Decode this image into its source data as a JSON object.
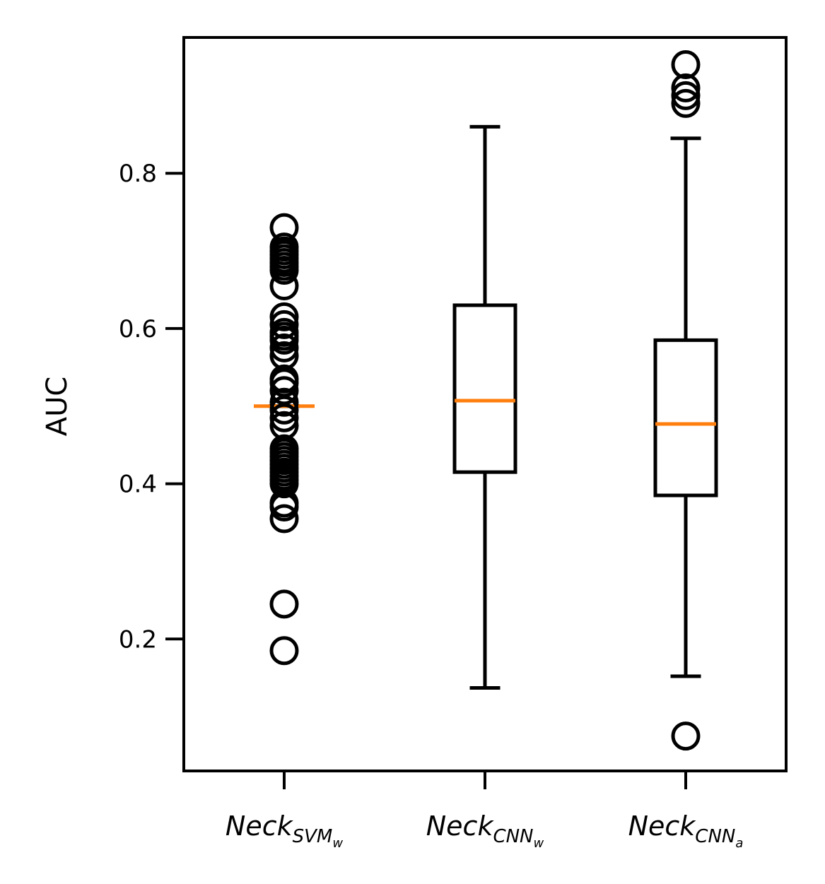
{
  "chart_data": {
    "type": "box",
    "ylabel": "AUC",
    "ylim": [
      0.03,
      0.975
    ],
    "yticks": [
      0.2,
      0.4,
      0.6,
      0.8
    ],
    "ytick_labels": [
      "0.2",
      "0.4",
      "0.6",
      "0.8"
    ],
    "categories": [
      {
        "label": "Neck",
        "sub": "SVM",
        "subsub": "w"
      },
      {
        "label": "Neck",
        "sub": "CNN",
        "subsub": "w"
      },
      {
        "label": "Neck",
        "sub": "CNN",
        "subsub": "a"
      }
    ],
    "series": [
      {
        "q1": 0.5,
        "median": 0.5,
        "q3": 0.5,
        "whisker_low": 0.5,
        "whisker_high": 0.5,
        "outliers": [
          0.73,
          0.705,
          0.7,
          0.695,
          0.69,
          0.685,
          0.68,
          0.675,
          0.655,
          0.615,
          0.605,
          0.595,
          0.59,
          0.585,
          0.575,
          0.565,
          0.535,
          0.53,
          0.52,
          0.505,
          0.495,
          0.485,
          0.475,
          0.445,
          0.44,
          0.435,
          0.43,
          0.425,
          0.42,
          0.415,
          0.41,
          0.405,
          0.4,
          0.375,
          0.37,
          0.355,
          0.245,
          0.185
        ]
      },
      {
        "q1": 0.415,
        "median": 0.507,
        "q3": 0.63,
        "whisker_low": 0.137,
        "whisker_high": 0.86,
        "outliers": []
      },
      {
        "q1": 0.385,
        "median": 0.477,
        "q3": 0.585,
        "whisker_low": 0.152,
        "whisker_high": 0.845,
        "outliers": [
          0.94,
          0.91,
          0.9,
          0.89,
          0.075
        ]
      }
    ],
    "colors": {
      "box": "#000000",
      "median": "#ff7f0e"
    }
  }
}
